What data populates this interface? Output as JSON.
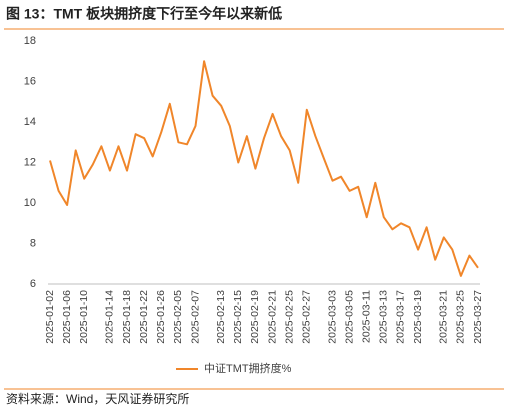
{
  "chart_data": {
    "type": "line",
    "title": "图 13：TMT 板块拥挤度下行至今年以来新低",
    "source": "资料来源：Wind，天风证券研究所",
    "categories": [
      "2025-01-02",
      null,
      "2025-01-06",
      null,
      "2025-01-10",
      null,
      null,
      "2025-01-14",
      null,
      "2025-01-18",
      null,
      "2025-01-22",
      null,
      "2025-01-26",
      null,
      "2025-02-05",
      null,
      "2025-02-07",
      null,
      null,
      "2025-02-13",
      null,
      "2025-02-15",
      null,
      "2025-02-19",
      null,
      "2025-02-21",
      null,
      "2025-02-25",
      null,
      "2025-02-27",
      null,
      null,
      "2025-03-03",
      null,
      "2025-03-05",
      null,
      "2025-03-11",
      null,
      "2025-03-13",
      null,
      "2025-03-17",
      null,
      "2025-03-19",
      null,
      null,
      "2025-03-21",
      null,
      "2025-03-25",
      null,
      "2025-03-27"
    ],
    "series": [
      {
        "name": "中证TMT拥挤度%",
        "color": "#f0862a",
        "values": [
          12.1,
          10.6,
          9.9,
          12.6,
          11.2,
          11.9,
          12.8,
          11.6,
          12.8,
          11.6,
          13.4,
          13.2,
          12.3,
          13.5,
          14.9,
          13.0,
          12.9,
          13.8,
          17.0,
          15.3,
          14.8,
          13.8,
          12.0,
          13.3,
          11.7,
          13.2,
          14.4,
          13.3,
          12.6,
          11.0,
          14.6,
          13.3,
          12.2,
          11.1,
          11.3,
          10.6,
          10.8,
          9.3,
          11.0,
          9.3,
          8.7,
          9.0,
          8.8,
          7.7,
          8.8,
          7.2,
          8.3,
          7.7,
          6.4,
          7.4,
          6.8
        ]
      }
    ],
    "ylim": [
      6,
      18
    ],
    "yticks": [
      6,
      8,
      10,
      12,
      14,
      16,
      18
    ],
    "grid": false,
    "legend": "bottom"
  }
}
